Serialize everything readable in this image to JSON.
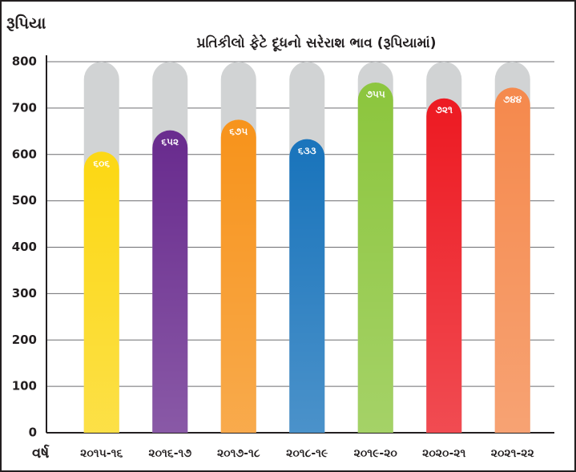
{
  "chart_data": {
    "type": "bar",
    "title": "પ્રતિકીલો ફેટે દૂધનો સરેરાશ ભાવ (રૂપિયામાં)",
    "y_label": "રૂપિયા",
    "x_label": "વર્ષ",
    "categories": [
      "૨૦૧૫-૧૬",
      "૨૦૧૬-૧૭",
      "૨૦૧૭-૧૮",
      "૨૦૧૮-૧૯",
      "૨૦૧૯-૨૦",
      "૨૦૨૦-૨૧",
      "૨૦૨૧-૨૨"
    ],
    "values": [
      606,
      652,
      675,
      633,
      755,
      721,
      744
    ],
    "value_labels": [
      "૬૦૬",
      "૬૫૨",
      "૬૭૫",
      "૬૩૩",
      "૭૫૫",
      "૭૨૧",
      "૭૪૪"
    ],
    "colors": [
      "#fcd816",
      "#6a2d8f",
      "#f7941d",
      "#1b75bc",
      "#8dc63f",
      "#ed1c24",
      "#f58a4e"
    ],
    "ylim": [
      0,
      800
    ],
    "yticks": [
      0,
      100,
      200,
      300,
      400,
      500,
      600,
      700,
      800
    ],
    "grid": true
  }
}
